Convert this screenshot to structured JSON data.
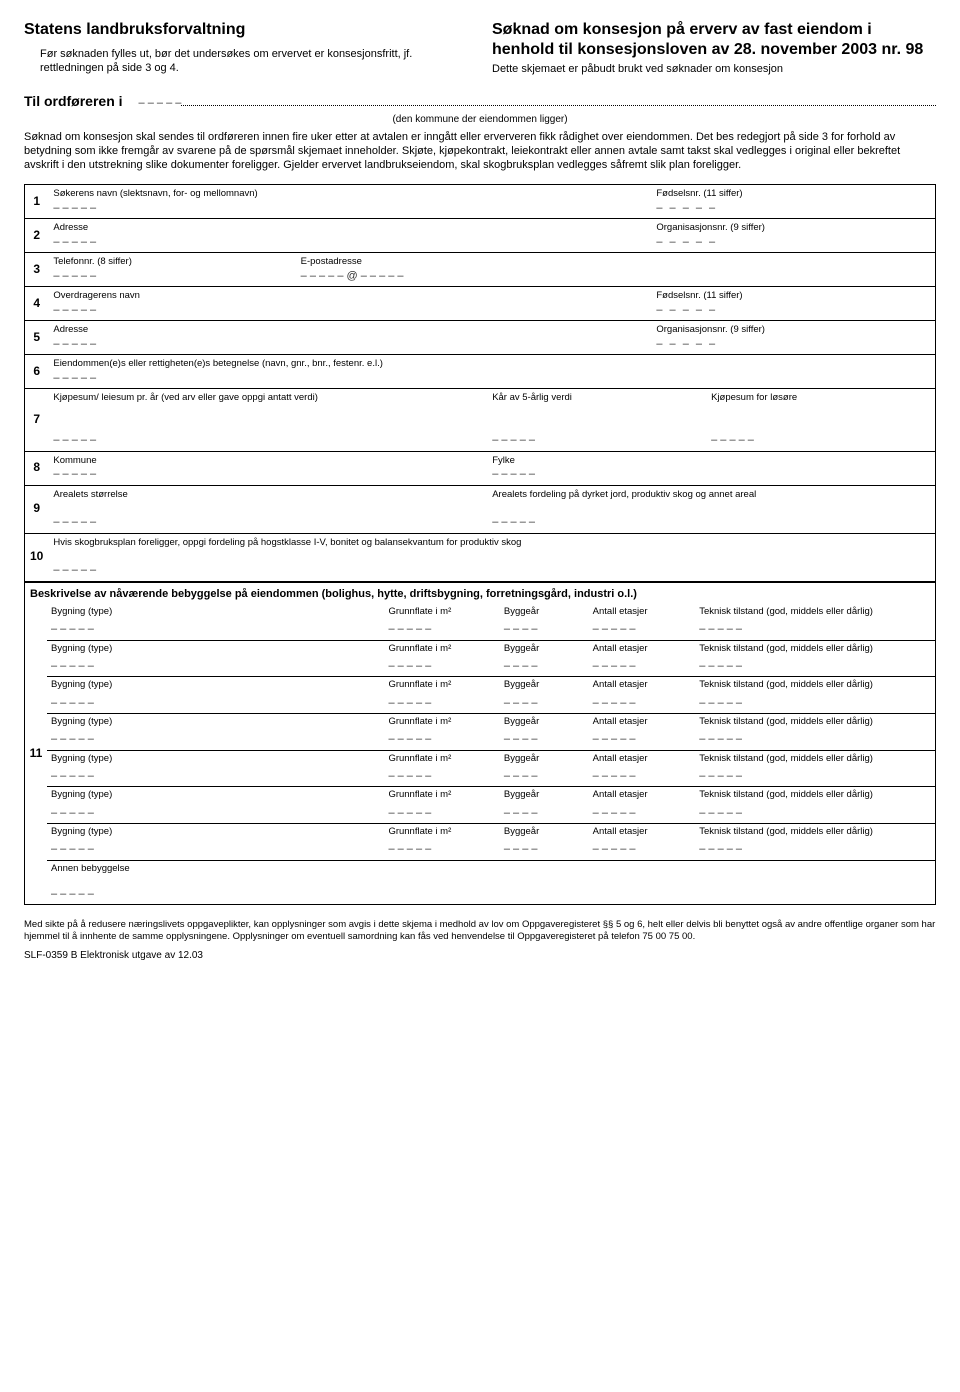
{
  "header": {
    "agency": "Statens landbruksforvaltning",
    "note": "Før søknaden fylles ut, bør det undersøkes om ervervet er konsesjonsfritt, jf. rettledningen på side 3 og 4.",
    "title": "Søknad om konsesjon på erverv av fast eiendom i henhold til konsesjonsloven av 28. november 2003 nr. 98",
    "sub": "Dette skjemaet er påbudt brukt ved søknader om konsesjon"
  },
  "til": {
    "label": "Til ordføreren i",
    "field": "– – – – –",
    "kommune": "(den kommune der eiendommen ligger)"
  },
  "intro": "Søknad om konsesjon skal sendes til ordføreren innen fire uker etter at avtalen er inngått eller erververen fikk rådighet over eiendommen. Det bes redegjort på side 3 for forhold av betydning som ikke fremgår av svarene på de spørsmål skjemaet inneholder. Skjøte, kjøpekontrakt, leiekontrakt eller annen avtale samt takst skal vedlegges i original eller bekreftet avskrift i den utstrekning slike dokumenter foreligger. Gjelder ervervet landbrukseiendom, skal skogbruksplan vedlegges såfremt slik plan foreligger.",
  "rows": {
    "r1": {
      "n": "1",
      "a": "Søkerens navn (slektsnavn, for- og mellomnavn)",
      "b": "Fødselsnr. (11 siffer)"
    },
    "r2": {
      "n": "2",
      "a": "Adresse",
      "b": "Organisasjonsnr. (9 siffer)"
    },
    "r3": {
      "n": "3",
      "a": "Telefonnr. (8 siffer)",
      "b": "E-postadresse",
      "bval": "– – – – – @ – – – – –"
    },
    "r4": {
      "n": "4",
      "a": "Overdragerens navn",
      "b": "Fødselsnr. (11 siffer)"
    },
    "r5": {
      "n": "5",
      "a": "Adresse",
      "b": "Organisasjonsnr. (9 siffer)"
    },
    "r6": {
      "n": "6",
      "a": "Eiendommen(e)s eller rettigheten(e)s betegnelse (navn, gnr., bnr., festenr. e.l.)"
    },
    "r7": {
      "n": "7",
      "a": "Kjøpesum/ leiesum pr. år (ved arv eller gave oppgi antatt verdi)",
      "b": "Kår av 5-årlig verdi",
      "c": "Kjøpesum for løsøre"
    },
    "r8": {
      "n": "8",
      "a": "Kommune",
      "b": "Fylke"
    },
    "r9": {
      "n": "9",
      "a": "Arealets størrelse",
      "b": "Arealets fordeling på dyrket jord, produktiv skog og annet areal"
    },
    "r10": {
      "n": "10",
      "a": "Hvis skogbruksplan foreligger, oppgi fordeling på hogstklasse I-V, bonitet og balansekvantum for produktiv skog"
    },
    "r11": {
      "n": "11",
      "title": "Beskrivelse av nåværende bebyggelse på eiendommen (bolighus, hytte, driftsbygning, forretningsgård, industri o.l.)"
    }
  },
  "dash5": "– – – – –",
  "dash5s": "–  –  –  –  –",
  "dash4": "– – – –",
  "buildings": {
    "cols": {
      "c1": "Bygning (type)",
      "c2": "Grunnflate i m²",
      "c3": "Byggeår",
      "c4": "Antall etasjer",
      "c5": "Teknisk tilstand (god, middels eller dårlig)"
    },
    "annen": "Annen bebyggelse"
  },
  "footer": "Med sikte på å redusere næringslivets oppgaveplikter, kan opplysninger som avgis i dette skjema i medhold av lov om Oppgaveregisteret §§ 5 og 6, helt eller delvis bli benyttet også av andre offentlige organer som har hjemmel til å innhente de samme opplysningene. Opplysninger om eventuell samordning kan fås ved henvendelse til Oppgaveregisteret på telefon 75 00 75 00.",
  "footer2": "SLF-0359 B Elektronisk utgave av 12.03"
}
